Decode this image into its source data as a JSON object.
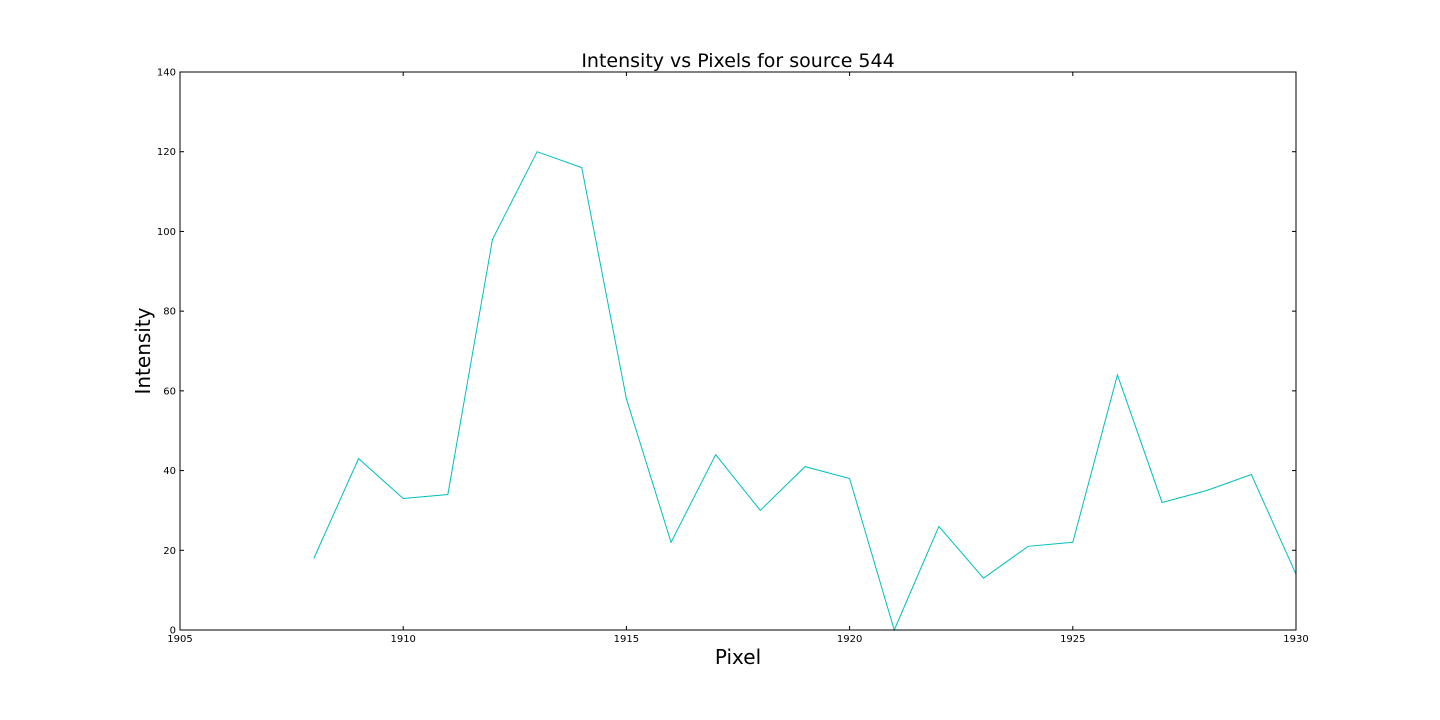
{
  "chart_data": {
    "type": "line",
    "title": "Intensity vs Pixels for source 544",
    "xlabel": "Pixel",
    "ylabel": "Intensity",
    "xlim": [
      1905,
      1930
    ],
    "ylim": [
      0,
      140
    ],
    "grid": false,
    "x_ticks": [
      "1905",
      "1910",
      "1915",
      "1920",
      "1925",
      "1930"
    ],
    "y_ticks": [
      "0",
      "20",
      "40",
      "60",
      "80",
      "100",
      "120",
      "140"
    ],
    "series": [
      {
        "color": "#00bfbf",
        "x": [
          1908,
          1909,
          1910,
          1911,
          1912,
          1913,
          1914,
          1915,
          1916,
          1917,
          1918,
          1919,
          1920,
          1921,
          1922,
          1923,
          1924,
          1925,
          1926,
          1927,
          1928,
          1929,
          1930
        ],
        "y": [
          18,
          43,
          33,
          34,
          98,
          120,
          116,
          58,
          22,
          44,
          30,
          41,
          38,
          0,
          26,
          13,
          21,
          22,
          64,
          32,
          35,
          39,
          14
        ]
      }
    ]
  }
}
